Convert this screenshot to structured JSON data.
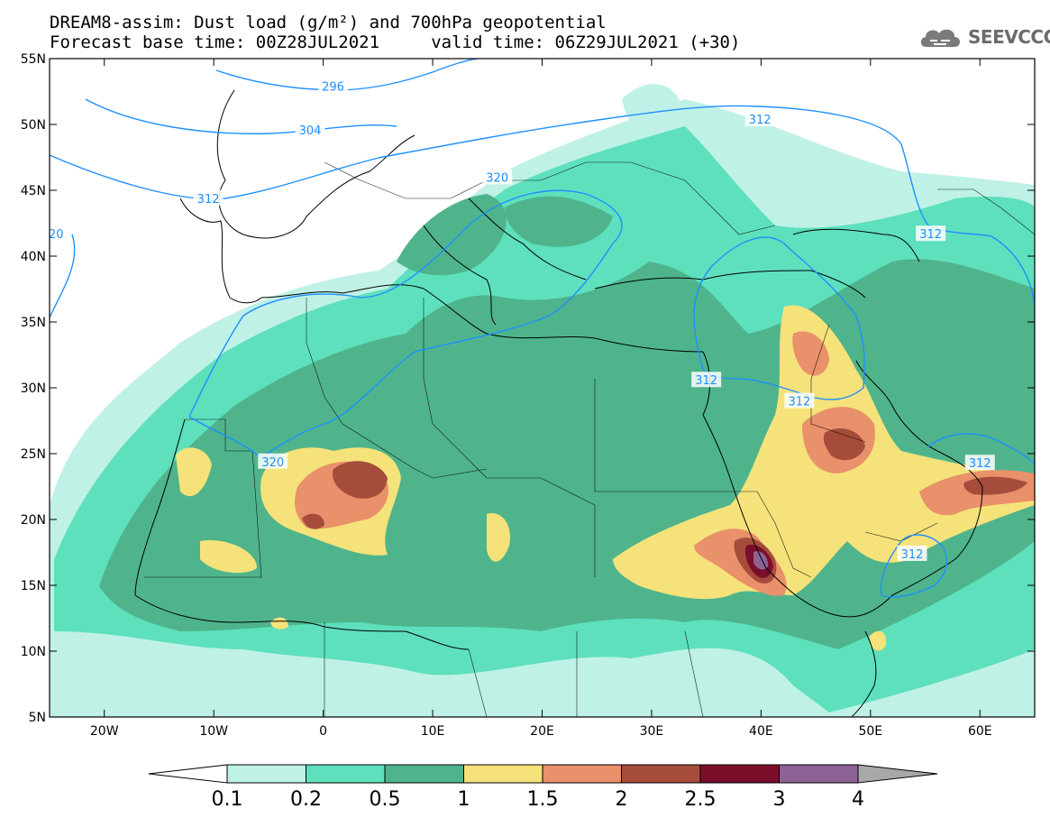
{
  "header": {
    "title_line1": "DREAM8-assim: Dust load (g/m²) and 700hPa geopotential",
    "title_line2": "Forecast base time: 00Z28JUL2021     valid time: 06Z29JUL2021 (+30)"
  },
  "logo": {
    "text": "SEEVCCC",
    "icon": "cloud-icon"
  },
  "map": {
    "lat_ticks": [
      {
        "value": 55,
        "label": "55N"
      },
      {
        "value": 50,
        "label": "50N"
      },
      {
        "value": 45,
        "label": "45N"
      },
      {
        "value": 40,
        "label": "40N"
      },
      {
        "value": 35,
        "label": "35N"
      },
      {
        "value": 30,
        "label": "30N"
      },
      {
        "value": 25,
        "label": "25N"
      },
      {
        "value": 20,
        "label": "20N"
      },
      {
        "value": 15,
        "label": "15N"
      },
      {
        "value": 10,
        "label": "10N"
      },
      {
        "value": 5,
        "label": "5N"
      }
    ],
    "lon_ticks": [
      {
        "value": -20,
        "label": "20W"
      },
      {
        "value": -10,
        "label": "10W"
      },
      {
        "value": 0,
        "label": "0"
      },
      {
        "value": 10,
        "label": "10E"
      },
      {
        "value": 20,
        "label": "20E"
      },
      {
        "value": 30,
        "label": "30E"
      },
      {
        "value": 40,
        "label": "40E"
      },
      {
        "value": 50,
        "label": "50E"
      },
      {
        "value": 60,
        "label": "60E"
      }
    ],
    "lon_range": [
      -25,
      65
    ],
    "lat_range": [
      5,
      55
    ],
    "contour_labels": [
      {
        "text": "296",
        "lon": 0.9,
        "lat": 52.9
      },
      {
        "text": "304",
        "lon": -1.2,
        "lat": 49.6
      },
      {
        "text": "312",
        "lon": -10.5,
        "lat": 44.4
      },
      {
        "text": "312",
        "lon": 35.0,
        "lat": 30.6
      },
      {
        "text": "312",
        "lon": 43.5,
        "lat": 29.0
      },
      {
        "text": "312",
        "lon": 55.5,
        "lat": 41.7
      },
      {
        "text": "312",
        "lon": 60.0,
        "lat": 24.3
      },
      {
        "text": "312",
        "lon": 53.8,
        "lat": 17.4
      },
      {
        "text": "312",
        "lon": 39.9,
        "lat": 50.4
      },
      {
        "text": "320",
        "lon": 15.9,
        "lat": 46.0
      },
      {
        "text": "320",
        "lon": -4.6,
        "lat": 24.4
      },
      {
        "text": "20",
        "lon": -24.4,
        "lat": 41.7
      }
    ]
  },
  "colorbar": {
    "labels": [
      "0.1",
      "0.2",
      "0.5",
      "1",
      "1.5",
      "2",
      "2.5",
      "3",
      "4"
    ],
    "colors": [
      "#bff1e6",
      "#5ee0bd",
      "#4fb48c",
      "#f5e27a",
      "#e8916a",
      "#a54c3b",
      "#7b0f2b",
      "#8c6394"
    ],
    "over_color": "#a8a8a8",
    "under_color": "#ffffff"
  },
  "colors": {
    "contour": "#1e90ff",
    "dust_0_1": "#bff1e6",
    "dust_0_2": "#5ee0bd",
    "dust_0_5": "#4fb48c",
    "dust_1": "#f5e27a",
    "dust_1_5": "#e8916a",
    "dust_2": "#a54c3b",
    "dust_2_5": "#7b0f2b",
    "dust_3": "#8c6394"
  }
}
